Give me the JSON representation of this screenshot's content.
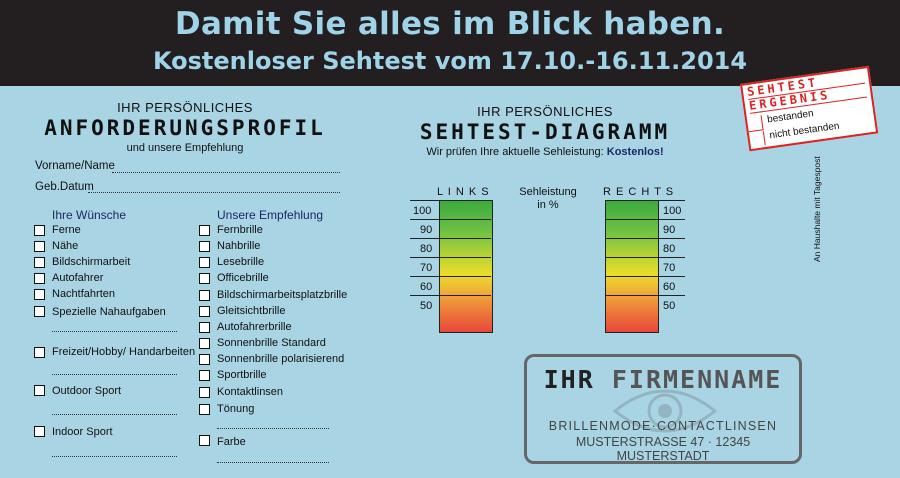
{
  "header": {
    "title": "Damit Sie alles im Blick haben.",
    "subtitle": "Kostenloser Sehtest vom 17.10.-16.11.2014"
  },
  "left": {
    "pretitle": "IHR PERSÖNLICHES",
    "title": "ANFORDERUNGSPROFIL",
    "sub": "und unsere Empfehlung",
    "name_label": "Vorname/Name",
    "dob_label": "Geb.Datum",
    "wishes_head": "Ihre Wünsche",
    "rec_head": "Unsere Empfehlung",
    "wishes": [
      "Ferne",
      "Nähe",
      "Bildschirmarbeit",
      "Autofahrer",
      "Nachtfahrten",
      "Spezielle Nahaufgaben",
      "Freizeit/Hobby/ Handarbeiten",
      "Outdoor Sport",
      "Indoor Sport"
    ],
    "recs": [
      "Fernbrille",
      "Nahbrille",
      "Lesebrille",
      "Officebrille",
      "Bildschirmarbeitsplatzbrille",
      "Gleitsichtbrille",
      "Autofahrerbrille",
      "Sonnenbrille Standard",
      "Sonnenbrille polarisierend",
      "Sportbrille",
      "Kontaktlinsen",
      "Tönung",
      "Farbe"
    ]
  },
  "middle": {
    "pretitle": "IHR PERSÖNLICHES",
    "title": "SEHTEST-DIAGRAMM",
    "sub_prefix": "Wir prüfen Ihre aktuelle Sehleistung: ",
    "sub_highlight": "Kostenlos!",
    "left_label": "L I N K S",
    "right_label": "R E C H T S",
    "center_label_1": "Sehleistung",
    "center_label_2": "in %",
    "ticks": [
      "100",
      "90",
      "80",
      "70",
      "60",
      "50"
    ]
  },
  "stamp": {
    "word1": "SEHTEST",
    "word2": "ERGEBNIS",
    "option1": "bestanden",
    "option2": "nicht bestanden"
  },
  "side_note": "An Haushalte mit Tagespost",
  "company": {
    "name_part1": "IHR ",
    "name_part2": "FIRMENNAME",
    "tagline": "BRILLENMODE·CONTACTLINSEN",
    "address": "MUSTERSTRASSE 47 · 12345 MUSTERSTADT"
  },
  "colors": {
    "header_bg": "#231f20",
    "page_bg": "#a9d4e4",
    "accent_text": "#9fd3e8",
    "stamp_red": "#d22"
  }
}
